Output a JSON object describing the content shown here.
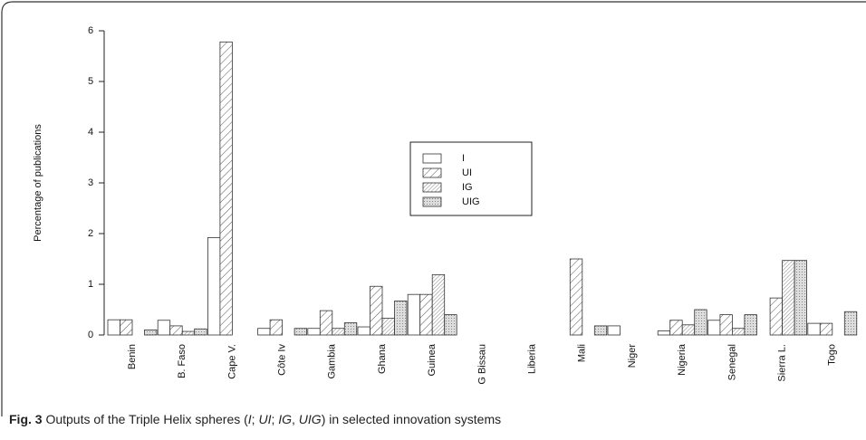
{
  "chart_data": {
    "type": "bar",
    "ylabel": "Percentage of publications",
    "categories": [
      "Benin",
      "B. Faso",
      "Cape V.",
      "Côte Iv",
      "Gambia",
      "Ghana",
      "Guinea",
      "G Bissau",
      "Liberia",
      "Mali",
      "Niger",
      "Nigeria",
      "Senegal",
      "Sierra L.",
      "Togo"
    ],
    "series": [
      {
        "name": "I",
        "values": [
          0.3,
          0.29,
          1.92,
          0.13,
          0.13,
          0.16,
          0.8,
          0,
          0,
          0,
          0.18,
          0.08,
          0.29,
          0,
          0.23
        ]
      },
      {
        "name": "UI",
        "values": [
          0.3,
          0.18,
          5.78,
          0.3,
          0.48,
          0.96,
          0.8,
          0,
          0,
          1.5,
          0,
          0.29,
          0.4,
          0.73,
          0.23
        ]
      },
      {
        "name": "IG",
        "values": [
          0,
          0.07,
          0,
          0,
          0.13,
          0.33,
          1.19,
          0,
          0,
          0,
          0,
          0.2,
          0.13,
          1.47,
          0
        ]
      },
      {
        "name": "UIG",
        "values": [
          0.1,
          0.12,
          0,
          0.13,
          0.24,
          0.67,
          0.4,
          0,
          0,
          0.18,
          0,
          0.5,
          0.4,
          1.47,
          0.46
        ]
      }
    ],
    "ylim": [
      0,
      6
    ],
    "yticks": [
      0,
      1,
      2,
      3,
      4,
      5,
      6
    ]
  },
  "caption": {
    "label": "Fig. 3",
    "parts": [
      " Outputs of the Triple Helix spheres (",
      "I",
      "; ",
      "UI",
      "; ",
      "IG",
      ", ",
      "UIG",
      ") in selected innovation systems"
    ]
  }
}
